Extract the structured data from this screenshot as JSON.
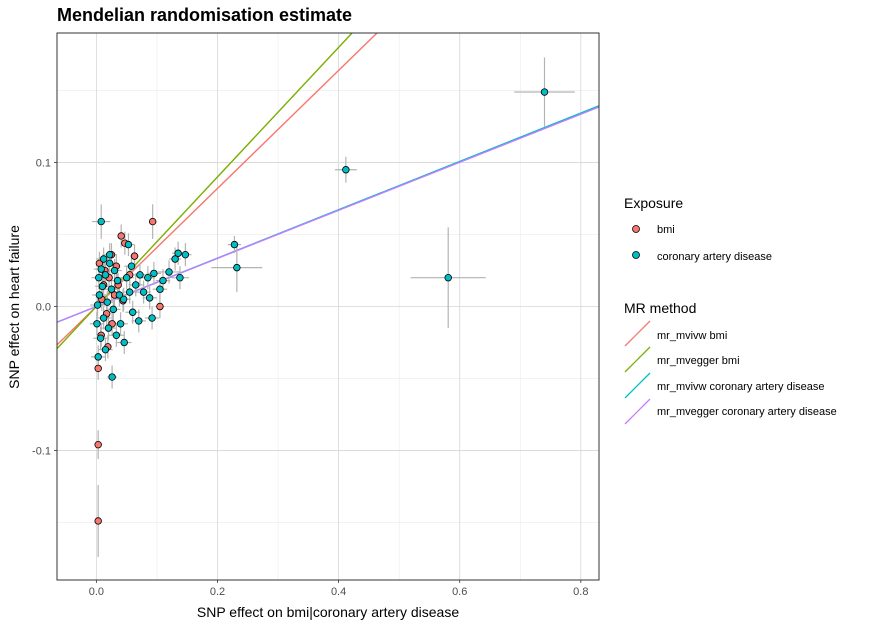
{
  "chart_data": {
    "type": "scatter",
    "title": "Mendelian randomisation estimate",
    "xlabel": "SNP effect on bmi|coronary artery disease",
    "ylabel": "SNP effect on heart failure",
    "xlim": [
      -0.065,
      0.83
    ],
    "ylim": [
      -0.19,
      0.19
    ],
    "x_ticks": [
      0.0,
      0.2,
      0.4,
      0.6,
      0.8
    ],
    "x_tick_labels": [
      "0.0",
      "0.2",
      "0.4",
      "0.6",
      "0.8"
    ],
    "y_ticks": [
      -0.1,
      0.0,
      0.1
    ],
    "y_tick_labels": [
      "-0.1",
      "0.0",
      "0.1"
    ],
    "grid": true,
    "legend_position": "right",
    "legend_exposure_title": "Exposure",
    "legend_method_title": "MR method",
    "exposures": [
      {
        "name": "bmi",
        "color": "#F8766D"
      },
      {
        "name": "coronary artery disease",
        "color": "#00BFC4"
      }
    ],
    "methods": [
      {
        "name": "mr_mvivw bmi",
        "color": "#F8766D",
        "slope": 0.41
      },
      {
        "name": "mr_mvegger bmi",
        "color": "#7CAE00",
        "slope": 0.45
      },
      {
        "name": "mr_mvivw coronary artery disease",
        "color": "#00BFC4",
        "slope": 0.168
      },
      {
        "name": "mr_mvegger coronary artery disease",
        "color": "#C77CFF",
        "slope": 0.167
      }
    ],
    "points": [
      {
        "exposure": "bmi",
        "x": 0.003,
        "y": -0.149,
        "xerr": 0.004,
        "yerr": 0.025
      },
      {
        "exposure": "bmi",
        "x": 0.003,
        "y": -0.096,
        "xerr": 0.004,
        "yerr": 0.01
      },
      {
        "exposure": "bmi",
        "x": 0.003,
        "y": -0.043,
        "xerr": 0.004,
        "yerr": 0.008
      },
      {
        "exposure": "bmi",
        "x": 0.093,
        "y": 0.059,
        "xerr": 0.006,
        "yerr": 0.012
      },
      {
        "exposure": "bmi",
        "x": 0.047,
        "y": 0.044,
        "xerr": 0.006,
        "yerr": 0.008
      },
      {
        "exposure": "bmi",
        "x": 0.041,
        "y": 0.049,
        "xerr": 0.006,
        "yerr": 0.008
      },
      {
        "exposure": "bmi",
        "x": 0.063,
        "y": 0.035,
        "xerr": 0.007,
        "yerr": 0.008
      },
      {
        "exposure": "bmi",
        "x": 0.025,
        "y": 0.036,
        "xerr": 0.005,
        "yerr": 0.008
      },
      {
        "exposure": "bmi",
        "x": 0.055,
        "y": 0.022,
        "xerr": 0.006,
        "yerr": 0.008
      },
      {
        "exposure": "bmi",
        "x": 0.105,
        "y": 0.0,
        "xerr": 0.007,
        "yerr": 0.008
      },
      {
        "exposure": "bmi",
        "x": 0.012,
        "y": 0.015,
        "xerr": 0.004,
        "yerr": 0.008
      },
      {
        "exposure": "bmi",
        "x": 0.021,
        "y": 0.02,
        "xerr": 0.004,
        "yerr": 0.008
      },
      {
        "exposure": "bmi",
        "x": 0.03,
        "y": 0.008,
        "xerr": 0.004,
        "yerr": 0.008
      },
      {
        "exposure": "bmi",
        "x": 0.017,
        "y": -0.005,
        "xerr": 0.004,
        "yerr": 0.008
      },
      {
        "exposure": "bmi",
        "x": 0.009,
        "y": 0.005,
        "xerr": 0.004,
        "yerr": 0.008
      },
      {
        "exposure": "bmi",
        "x": 0.036,
        "y": 0.015,
        "xerr": 0.004,
        "yerr": 0.008
      },
      {
        "exposure": "bmi",
        "x": 0.014,
        "y": 0.025,
        "xerr": 0.004,
        "yerr": 0.008
      },
      {
        "exposure": "bmi",
        "x": 0.026,
        "y": -0.012,
        "xerr": 0.004,
        "yerr": 0.008
      },
      {
        "exposure": "bmi",
        "x": 0.044,
        "y": 0.004,
        "xerr": 0.004,
        "yerr": 0.008
      },
      {
        "exposure": "bmi",
        "x": 0.008,
        "y": -0.02,
        "xerr": 0.004,
        "yerr": 0.008
      },
      {
        "exposure": "bmi",
        "x": 0.019,
        "y": -0.028,
        "xerr": 0.004,
        "yerr": 0.008
      },
      {
        "exposure": "bmi",
        "x": 0.005,
        "y": 0.03,
        "xerr": 0.004,
        "yerr": 0.008
      },
      {
        "exposure": "bmi",
        "x": 0.033,
        "y": 0.028,
        "xerr": 0.004,
        "yerr": 0.008
      },
      {
        "exposure": "coronary artery disease",
        "x": 0.74,
        "y": 0.149,
        "xerr": 0.05,
        "yerr": 0.024
      },
      {
        "exposure": "coronary artery disease",
        "x": 0.412,
        "y": 0.095,
        "xerr": 0.018,
        "yerr": 0.009
      },
      {
        "exposure": "coronary artery disease",
        "x": 0.581,
        "y": 0.02,
        "xerr": 0.062,
        "yerr": 0.035
      },
      {
        "exposure": "coronary artery disease",
        "x": 0.228,
        "y": 0.043,
        "xerr": 0.011,
        "yerr": 0.006
      },
      {
        "exposure": "coronary artery disease",
        "x": 0.232,
        "y": 0.027,
        "xerr": 0.042,
        "yerr": 0.017
      },
      {
        "exposure": "coronary artery disease",
        "x": 0.008,
        "y": 0.059,
        "xerr": 0.015,
        "yerr": 0.012
      },
      {
        "exposure": "coronary artery disease",
        "x": 0.053,
        "y": 0.043,
        "xerr": 0.01,
        "yerr": 0.008
      },
      {
        "exposure": "coronary artery disease",
        "x": 0.026,
        "y": -0.049,
        "xerr": 0.008,
        "yerr": 0.008
      },
      {
        "exposure": "coronary artery disease",
        "x": 0.135,
        "y": 0.037,
        "xerr": 0.01,
        "yerr": 0.008
      },
      {
        "exposure": "coronary artery disease",
        "x": 0.147,
        "y": 0.036,
        "xerr": 0.01,
        "yerr": 0.008
      },
      {
        "exposure": "coronary artery disease",
        "x": 0.13,
        "y": 0.033,
        "xerr": 0.01,
        "yerr": 0.008
      },
      {
        "exposure": "coronary artery disease",
        "x": 0.12,
        "y": 0.024,
        "xerr": 0.018,
        "yerr": 0.008
      },
      {
        "exposure": "coronary artery disease",
        "x": 0.138,
        "y": 0.02,
        "xerr": 0.015,
        "yerr": 0.008
      },
      {
        "exposure": "coronary artery disease",
        "x": 0.095,
        "y": 0.023,
        "xerr": 0.012,
        "yerr": 0.008
      },
      {
        "exposure": "coronary artery disease",
        "x": 0.085,
        "y": 0.02,
        "xerr": 0.012,
        "yerr": 0.008
      },
      {
        "exposure": "coronary artery disease",
        "x": 0.072,
        "y": 0.022,
        "xerr": 0.012,
        "yerr": 0.008
      },
      {
        "exposure": "coronary artery disease",
        "x": 0.105,
        "y": 0.012,
        "xerr": 0.012,
        "yerr": 0.008
      },
      {
        "exposure": "coronary artery disease",
        "x": 0.088,
        "y": 0.006,
        "xerr": 0.012,
        "yerr": 0.008
      },
      {
        "exposure": "coronary artery disease",
        "x": 0.092,
        "y": -0.008,
        "xerr": 0.012,
        "yerr": 0.008
      },
      {
        "exposure": "coronary artery disease",
        "x": 0.065,
        "y": 0.015,
        "xerr": 0.012,
        "yerr": 0.008
      },
      {
        "exposure": "coronary artery disease",
        "x": 0.055,
        "y": 0.01,
        "xerr": 0.012,
        "yerr": 0.008
      },
      {
        "exposure": "coronary artery disease",
        "x": 0.045,
        "y": 0.005,
        "xerr": 0.012,
        "yerr": 0.008
      },
      {
        "exposure": "coronary artery disease",
        "x": 0.06,
        "y": -0.004,
        "xerr": 0.012,
        "yerr": 0.008
      },
      {
        "exposure": "coronary artery disease",
        "x": 0.04,
        "y": -0.012,
        "xerr": 0.012,
        "yerr": 0.008
      },
      {
        "exposure": "coronary artery disease",
        "x": 0.035,
        "y": 0.018,
        "xerr": 0.012,
        "yerr": 0.008
      },
      {
        "exposure": "coronary artery disease",
        "x": 0.03,
        "y": 0.025,
        "xerr": 0.012,
        "yerr": 0.008
      },
      {
        "exposure": "coronary artery disease",
        "x": 0.022,
        "y": 0.03,
        "xerr": 0.012,
        "yerr": 0.008
      },
      {
        "exposure": "coronary artery disease",
        "x": 0.015,
        "y": 0.022,
        "xerr": 0.012,
        "yerr": 0.008
      },
      {
        "exposure": "coronary artery disease",
        "x": 0.01,
        "y": 0.014,
        "xerr": 0.012,
        "yerr": 0.008
      },
      {
        "exposure": "coronary artery disease",
        "x": 0.005,
        "y": 0.008,
        "xerr": 0.012,
        "yerr": 0.008
      },
      {
        "exposure": "coronary artery disease",
        "x": 0.018,
        "y": 0.003,
        "xerr": 0.012,
        "yerr": 0.008
      },
      {
        "exposure": "coronary artery disease",
        "x": 0.028,
        "y": -0.002,
        "xerr": 0.012,
        "yerr": 0.008
      },
      {
        "exposure": "coronary artery disease",
        "x": 0.012,
        "y": -0.008,
        "xerr": 0.012,
        "yerr": 0.008
      },
      {
        "exposure": "coronary artery disease",
        "x": 0.02,
        "y": -0.015,
        "xerr": 0.012,
        "yerr": 0.008
      },
      {
        "exposure": "coronary artery disease",
        "x": 0.007,
        "y": -0.022,
        "xerr": 0.012,
        "yerr": 0.008
      },
      {
        "exposure": "coronary artery disease",
        "x": 0.015,
        "y": -0.03,
        "xerr": 0.012,
        "yerr": 0.008
      },
      {
        "exposure": "coronary artery disease",
        "x": 0.003,
        "y": -0.035,
        "xerr": 0.012,
        "yerr": 0.008
      },
      {
        "exposure": "coronary artery disease",
        "x": 0.025,
        "y": 0.012,
        "xerr": 0.012,
        "yerr": 0.008
      },
      {
        "exposure": "coronary artery disease",
        "x": 0.038,
        "y": 0.008,
        "xerr": 0.012,
        "yerr": 0.008
      },
      {
        "exposure": "coronary artery disease",
        "x": 0.05,
        "y": 0.02,
        "xerr": 0.012,
        "yerr": 0.008
      },
      {
        "exposure": "coronary artery disease",
        "x": 0.004,
        "y": 0.02,
        "xerr": 0.012,
        "yerr": 0.008
      },
      {
        "exposure": "coronary artery disease",
        "x": 0.008,
        "y": 0.026,
        "xerr": 0.012,
        "yerr": 0.008
      },
      {
        "exposure": "coronary artery disease",
        "x": 0.002,
        "y": 0.001,
        "xerr": 0.012,
        "yerr": 0.008
      },
      {
        "exposure": "coronary artery disease",
        "x": 0.078,
        "y": 0.01,
        "xerr": 0.012,
        "yerr": 0.008
      },
      {
        "exposure": "coronary artery disease",
        "x": 0.11,
        "y": 0.018,
        "xerr": 0.012,
        "yerr": 0.008
      },
      {
        "exposure": "coronary artery disease",
        "x": 0.07,
        "y": -0.01,
        "xerr": 0.012,
        "yerr": 0.008
      },
      {
        "exposure": "coronary artery disease",
        "x": 0.033,
        "y": -0.02,
        "xerr": 0.012,
        "yerr": 0.008
      },
      {
        "exposure": "coronary artery disease",
        "x": 0.022,
        "y": 0.036,
        "xerr": 0.012,
        "yerr": 0.008
      },
      {
        "exposure": "coronary artery disease",
        "x": 0.012,
        "y": 0.033,
        "xerr": 0.012,
        "yerr": 0.008
      },
      {
        "exposure": "coronary artery disease",
        "x": 0.046,
        "y": -0.025,
        "xerr": 0.012,
        "yerr": 0.008
      },
      {
        "exposure": "coronary artery disease",
        "x": 0.001,
        "y": -0.012,
        "xerr": 0.012,
        "yerr": 0.008
      },
      {
        "exposure": "coronary artery disease",
        "x": 0.058,
        "y": 0.028,
        "xerr": 0.012,
        "yerr": 0.008
      }
    ]
  }
}
